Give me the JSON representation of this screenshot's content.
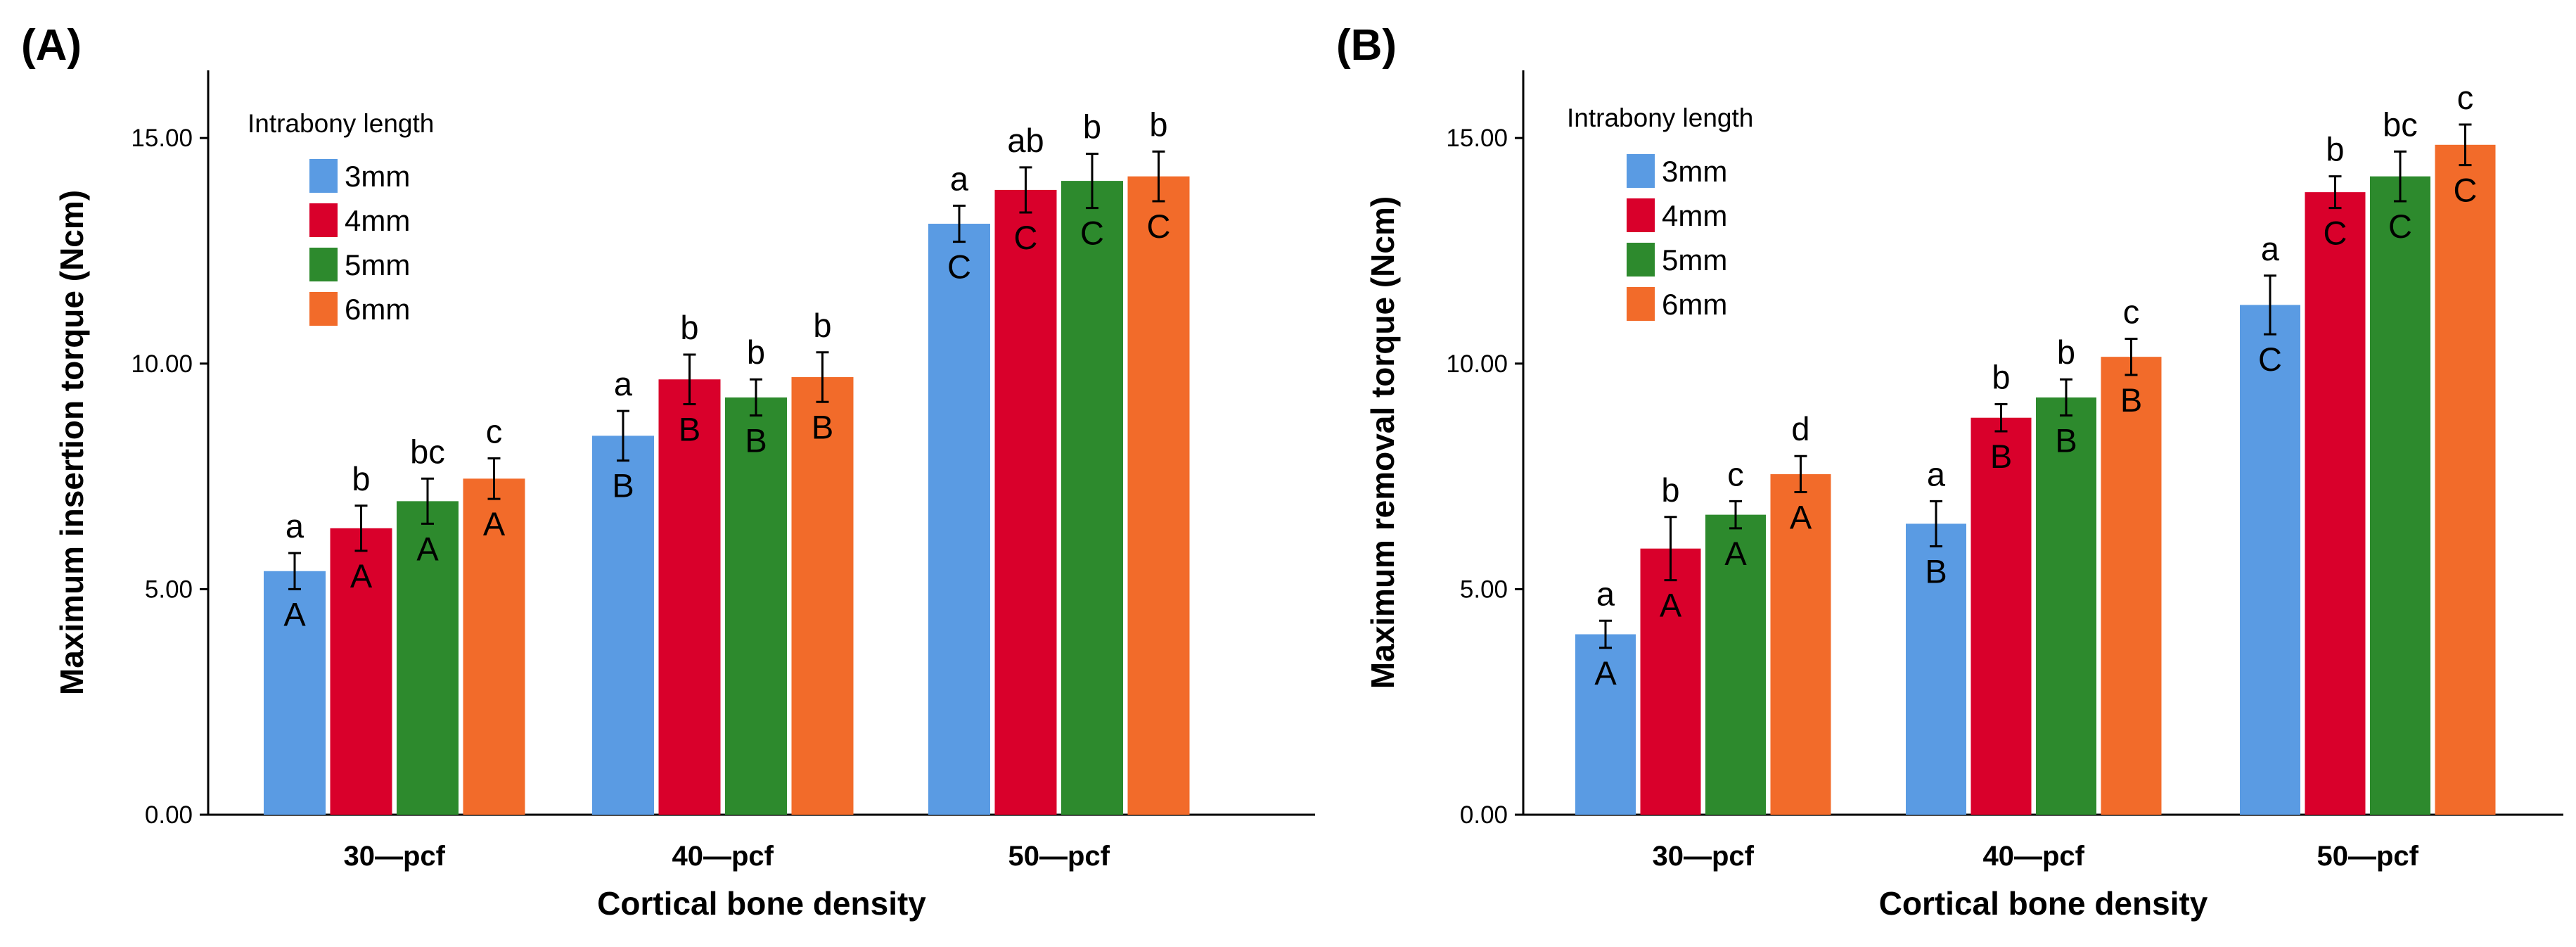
{
  "chart_data": [
    {
      "type": "bar",
      "panel_label": "(A)",
      "xlabel": "Cortical bone density",
      "ylabel": "Maximum insertion torque (Ncm)",
      "ylim": [
        0,
        16.5
      ],
      "yticks": [
        0,
        5,
        10,
        15
      ],
      "ytick_labels": [
        "0.00",
        "5.00",
        "10.00",
        "15.00"
      ],
      "categories": [
        "30—pcf",
        "40—pcf",
        "50—pcf"
      ],
      "legend_title": "Intrabony length",
      "legend_position": "top-left",
      "series": [
        {
          "name": "3mm",
          "color": "#5a9be3",
          "values": [
            5.4,
            8.4,
            13.1
          ],
          "errors": [
            0.4,
            0.55,
            0.4
          ],
          "lower_letters": [
            "a",
            "a",
            "a"
          ],
          "upper_letters": [
            "A",
            "B",
            "C"
          ]
        },
        {
          "name": "4mm",
          "color": "#d9002b",
          "values": [
            6.35,
            9.65,
            13.85
          ],
          "errors": [
            0.5,
            0.55,
            0.5
          ],
          "lower_letters": [
            "b",
            "b",
            "ab"
          ],
          "upper_letters": [
            "A",
            "B",
            "C"
          ]
        },
        {
          "name": "5mm",
          "color": "#2d8a2d",
          "values": [
            6.95,
            9.25,
            14.05
          ],
          "errors": [
            0.5,
            0.4,
            0.6
          ],
          "lower_letters": [
            "bc",
            "b",
            "b"
          ],
          "upper_letters": [
            "A",
            "B",
            "C"
          ]
        },
        {
          "name": "6mm",
          "color": "#f26b2a",
          "values": [
            7.45,
            9.7,
            14.15
          ],
          "errors": [
            0.45,
            0.55,
            0.55
          ],
          "lower_letters": [
            "c",
            "b",
            "b"
          ],
          "upper_letters": [
            "A",
            "B",
            "C"
          ]
        }
      ]
    },
    {
      "type": "bar",
      "panel_label": "(B)",
      "xlabel": "Cortical bone density",
      "ylabel": "Maximum removal torque (Ncm)",
      "ylim": [
        0,
        16.5
      ],
      "yticks": [
        0,
        5,
        10,
        15
      ],
      "ytick_labels": [
        "0.00",
        "5.00",
        "10.00",
        "15.00"
      ],
      "categories": [
        "30—pcf",
        "40—pcf",
        "50—pcf"
      ],
      "legend_title": "Intrabony length",
      "legend_position": "top-left",
      "series": [
        {
          "name": "3mm",
          "color": "#5a9be3",
          "values": [
            4.0,
            6.45,
            11.3
          ],
          "errors": [
            0.3,
            0.5,
            0.65
          ],
          "lower_letters": [
            "a",
            "a",
            "a"
          ],
          "upper_letters": [
            "A",
            "B",
            "C"
          ]
        },
        {
          "name": "4mm",
          "color": "#d9002b",
          "values": [
            5.9,
            8.8,
            13.8
          ],
          "errors": [
            0.7,
            0.3,
            0.35
          ],
          "lower_letters": [
            "b",
            "b",
            "b"
          ],
          "upper_letters": [
            "A",
            "B",
            "C"
          ]
        },
        {
          "name": "5mm",
          "color": "#2d8a2d",
          "values": [
            6.65,
            9.25,
            14.15
          ],
          "errors": [
            0.3,
            0.4,
            0.55
          ],
          "lower_letters": [
            "c",
            "b",
            "bc"
          ],
          "upper_letters": [
            "A",
            "B",
            "C"
          ]
        },
        {
          "name": "6mm",
          "color": "#f26b2a",
          "values": [
            7.55,
            10.15,
            14.85
          ],
          "errors": [
            0.4,
            0.4,
            0.45
          ],
          "lower_letters": [
            "d",
            "c",
            "c"
          ],
          "upper_letters": [
            "A",
            "B",
            "C"
          ]
        }
      ]
    }
  ]
}
